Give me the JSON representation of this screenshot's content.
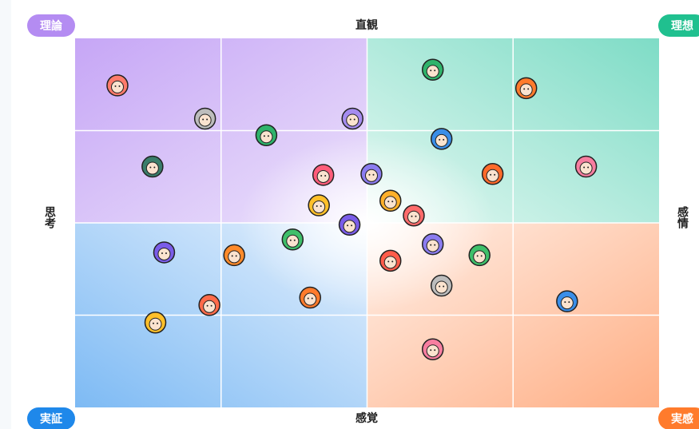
{
  "chart_data": {
    "type": "scatter",
    "corner_labels": {
      "top_left": "理論",
      "top_right": "理想",
      "bottom_left": "実証",
      "bottom_right": "実感"
    },
    "corner_colors": {
      "top_left": "#b48cf2",
      "top_right": "#20c08f",
      "bottom_left": "#1f88ea",
      "bottom_right": "#ff7b2c"
    },
    "top_label": "直観",
    "bottom_label": "感覚",
    "left_label": "思考",
    "right_label": "感情",
    "xlim": [
      -2,
      2
    ],
    "ylim": [
      -2,
      2
    ],
    "grid": true,
    "x": [
      -1.71,
      -1.11,
      -1.47,
      -0.69,
      -0.1,
      -0.3,
      0.03,
      -0.33,
      -0.12,
      0.16,
      0.32,
      0.45,
      1.09,
      0.51,
      0.86,
      1.5,
      -1.39,
      -0.91,
      -0.51,
      -0.39,
      -1.08,
      -1.45,
      0.45,
      0.16,
      0.77,
      0.51,
      1.37,
      0.45
    ],
    "values": [
      1.49,
      1.13,
      0.61,
      0.95,
      1.13,
      0.52,
      0.53,
      0.19,
      -0.02,
      0.24,
      0.08,
      1.66,
      1.46,
      0.91,
      0.53,
      0.61,
      -0.32,
      -0.35,
      -0.18,
      -0.81,
      -0.89,
      -1.08,
      -0.23,
      -0.41,
      -0.35,
      -0.68,
      -0.85,
      -1.37
    ],
    "point_colors": [
      "#ff7b6b",
      "#bdbdbd",
      "#3a7d6a",
      "#2fb36b",
      "#a58cf0",
      "#ff5c7a",
      "#8b7cf0",
      "#ffc02a",
      "#7a5ce8",
      "#ffb02a",
      "#ff6b6b",
      "#2fb36b",
      "#ff7b2c",
      "#3a8ee8",
      "#ff6a2a",
      "#f77ea0",
      "#7a5ce8",
      "#ff8a2a",
      "#3fbf6a",
      "#ff7b2c",
      "#ff6b4a",
      "#ffc02a",
      "#8b7cf0",
      "#ff5c4a",
      "#3fbf6a",
      "#bdbdbd",
      "#3a8ee8",
      "#f77ea0"
    ]
  }
}
